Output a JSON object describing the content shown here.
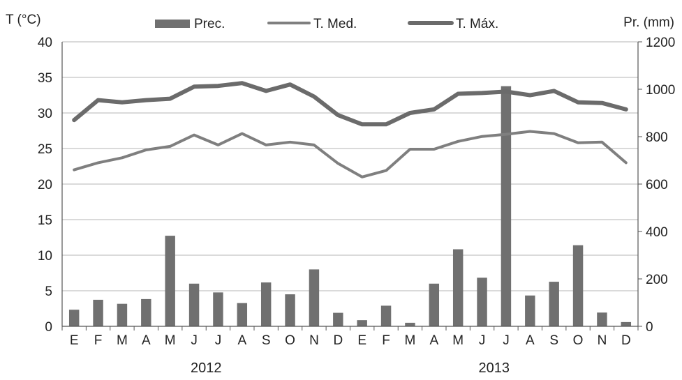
{
  "chart_data": {
    "type": "bar+line",
    "title": "",
    "y_left_label": "T (°C)",
    "y_right_label": "Pr. (mm)",
    "y_left_lim": [
      0,
      40
    ],
    "y_left_ticks": [
      "0",
      "5",
      "10",
      "15",
      "20",
      "25",
      "30",
      "35",
      "40"
    ],
    "y_right_lim": [
      0,
      1200
    ],
    "y_right_ticks": [
      "0",
      "200",
      "400",
      "600",
      "800",
      "1000",
      "1200"
    ],
    "categories": [
      "E",
      "F",
      "M",
      "A",
      "M",
      "J",
      "J",
      "A",
      "S",
      "O",
      "N",
      "D",
      "E",
      "F",
      "M",
      "A",
      "M",
      "J",
      "J",
      "A",
      "S",
      "O",
      "N",
      "D"
    ],
    "groups": [
      {
        "label": "2012",
        "span": [
          0,
          11
        ]
      },
      {
        "label": "2013",
        "span": [
          12,
          23
        ]
      }
    ],
    "grid": "horizontal",
    "legend": "top",
    "series": [
      {
        "name": "Prec.",
        "type": "bar",
        "axis": "right",
        "color": "#707070",
        "values": [
          70,
          112,
          95,
          115,
          382,
          180,
          143,
          98,
          185,
          135,
          240,
          57,
          26,
          87,
          15,
          180,
          325,
          205,
          1013,
          130,
          188,
          342,
          58,
          18
        ]
      },
      {
        "name": "T. Med.",
        "type": "line",
        "axis": "left",
        "color": "#7f7f7f",
        "values": [
          22.0,
          23.0,
          23.7,
          24.8,
          25.3,
          26.9,
          25.5,
          27.1,
          25.5,
          25.9,
          25.5,
          22.9,
          21.0,
          21.9,
          24.9,
          24.9,
          26.0,
          26.7,
          27.0,
          27.4,
          27.1,
          25.8,
          25.9,
          23.0
        ]
      },
      {
        "name": "T. Máx.",
        "type": "line",
        "axis": "left",
        "color": "#6b6b6b",
        "values": [
          29.0,
          31.8,
          31.5,
          31.8,
          32.0,
          33.7,
          33.8,
          34.2,
          33.1,
          34.0,
          32.3,
          29.7,
          28.4,
          28.4,
          30.0,
          30.5,
          32.7,
          32.8,
          33.0,
          32.5,
          33.1,
          31.5,
          31.4,
          30.5
        ]
      }
    ]
  }
}
